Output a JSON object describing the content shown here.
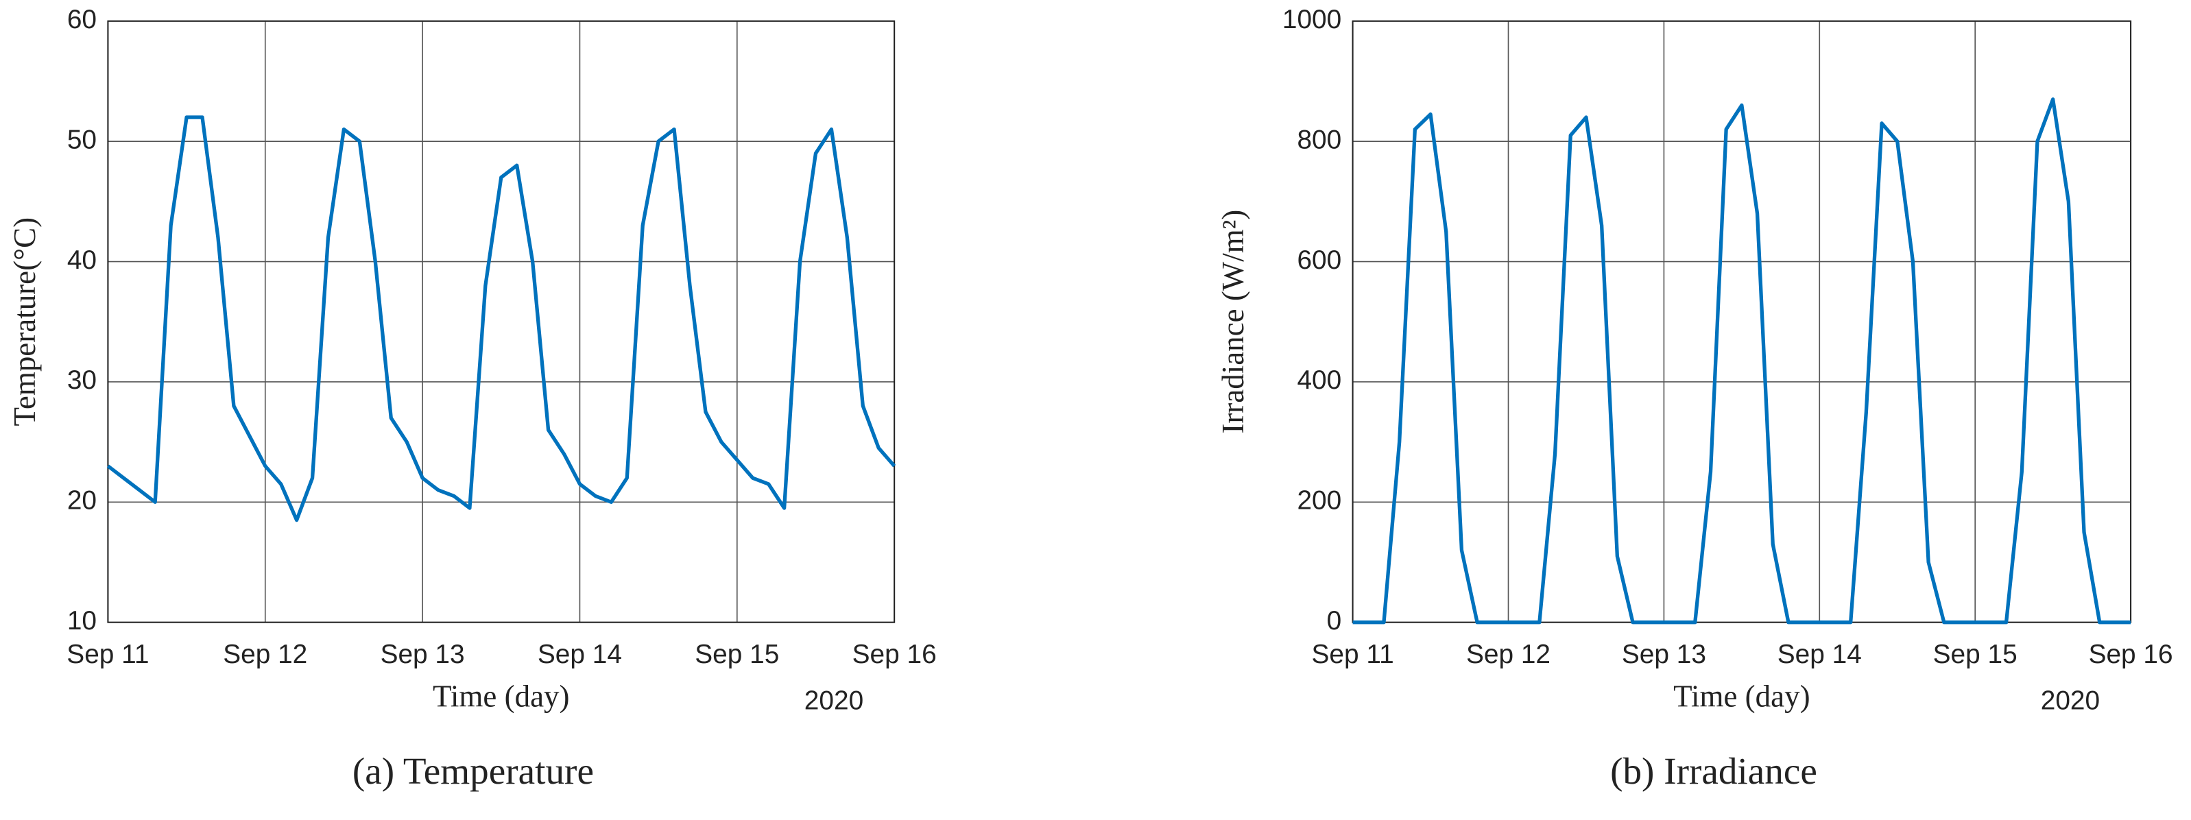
{
  "chart_data": [
    {
      "type": "line",
      "caption": "(a) Temperature",
      "xlabel": "Time (day)",
      "ylabel": "Temperature(°C)",
      "annotation": "2020",
      "x": [
        11.0,
        11.1,
        11.2,
        11.3,
        11.4,
        11.5,
        11.6,
        11.7,
        11.8,
        11.9,
        12.0,
        12.1,
        12.2,
        12.3,
        12.4,
        12.5,
        12.6,
        12.7,
        12.8,
        12.9,
        13.0,
        13.1,
        13.2,
        13.3,
        13.4,
        13.5,
        13.6,
        13.7,
        13.8,
        13.9,
        14.0,
        14.1,
        14.2,
        14.3,
        14.4,
        14.5,
        14.6,
        14.7,
        14.8,
        14.9,
        15.0,
        15.1,
        15.2,
        15.3,
        15.4,
        15.5,
        15.6,
        15.7,
        15.8,
        15.9,
        16.0
      ],
      "series": [
        {
          "name": "Temperature",
          "color": "#0072bd",
          "values": [
            23,
            22,
            21,
            20,
            43,
            52,
            52,
            42,
            28,
            25.5,
            23,
            21.5,
            18.5,
            22,
            42,
            51,
            50,
            40,
            27,
            25,
            22,
            21,
            20.5,
            19.5,
            38,
            47,
            48,
            40,
            26,
            24,
            21.5,
            20.5,
            20,
            22,
            43,
            50,
            51,
            38,
            27.5,
            25,
            23.5,
            22,
            21.5,
            19.5,
            40,
            49,
            51,
            42,
            28,
            24.5,
            23
          ]
        }
      ],
      "xlim": [
        11,
        16
      ],
      "ylim": [
        10,
        60
      ],
      "xticks": [
        {
          "value": 11,
          "label": "Sep 11"
        },
        {
          "value": 12,
          "label": "Sep 12"
        },
        {
          "value": 13,
          "label": "Sep 13"
        },
        {
          "value": 14,
          "label": "Sep 14"
        },
        {
          "value": 15,
          "label": "Sep 15"
        },
        {
          "value": 16,
          "label": "Sep 16"
        }
      ],
      "yticks": [
        10,
        20,
        30,
        40,
        50,
        60
      ],
      "grid": true
    },
    {
      "type": "line",
      "caption": "(b) Irradiance",
      "xlabel": "Time (day)",
      "ylabel": "Irradiance (W/m²)",
      "annotation": "2020",
      "x": [
        11.0,
        11.1,
        11.2,
        11.3,
        11.4,
        11.5,
        11.6,
        11.7,
        11.8,
        11.9,
        12.0,
        12.1,
        12.2,
        12.3,
        12.4,
        12.5,
        12.6,
        12.7,
        12.8,
        12.9,
        13.0,
        13.1,
        13.2,
        13.3,
        13.4,
        13.5,
        13.6,
        13.7,
        13.8,
        13.9,
        14.0,
        14.1,
        14.2,
        14.3,
        14.4,
        14.5,
        14.6,
        14.7,
        14.8,
        14.9,
        15.0,
        15.1,
        15.2,
        15.3,
        15.4,
        15.5,
        15.6,
        15.7,
        15.8,
        15.9,
        16.0
      ],
      "series": [
        {
          "name": "Irradiance",
          "color": "#0072bd",
          "values": [
            0,
            0,
            0,
            300,
            820,
            845,
            650,
            120,
            0,
            0,
            0,
            0,
            0,
            280,
            810,
            840,
            660,
            110,
            0,
            0,
            0,
            0,
            0,
            250,
            820,
            860,
            680,
            130,
            0,
            0,
            0,
            0,
            0,
            350,
            830,
            800,
            600,
            100,
            0,
            0,
            0,
            0,
            0,
            250,
            800,
            870,
            700,
            150,
            0,
            0,
            0
          ]
        }
      ],
      "xlim": [
        11,
        16
      ],
      "ylim": [
        0,
        1000
      ],
      "xticks": [
        {
          "value": 11,
          "label": "Sep 11"
        },
        {
          "value": 12,
          "label": "Sep 12"
        },
        {
          "value": 13,
          "label": "Sep 13"
        },
        {
          "value": 14,
          "label": "Sep 14"
        },
        {
          "value": 15,
          "label": "Sep 15"
        },
        {
          "value": 16,
          "label": "Sep 16"
        }
      ],
      "yticks": [
        0,
        200,
        400,
        600,
        800,
        1000
      ],
      "grid": true
    }
  ]
}
